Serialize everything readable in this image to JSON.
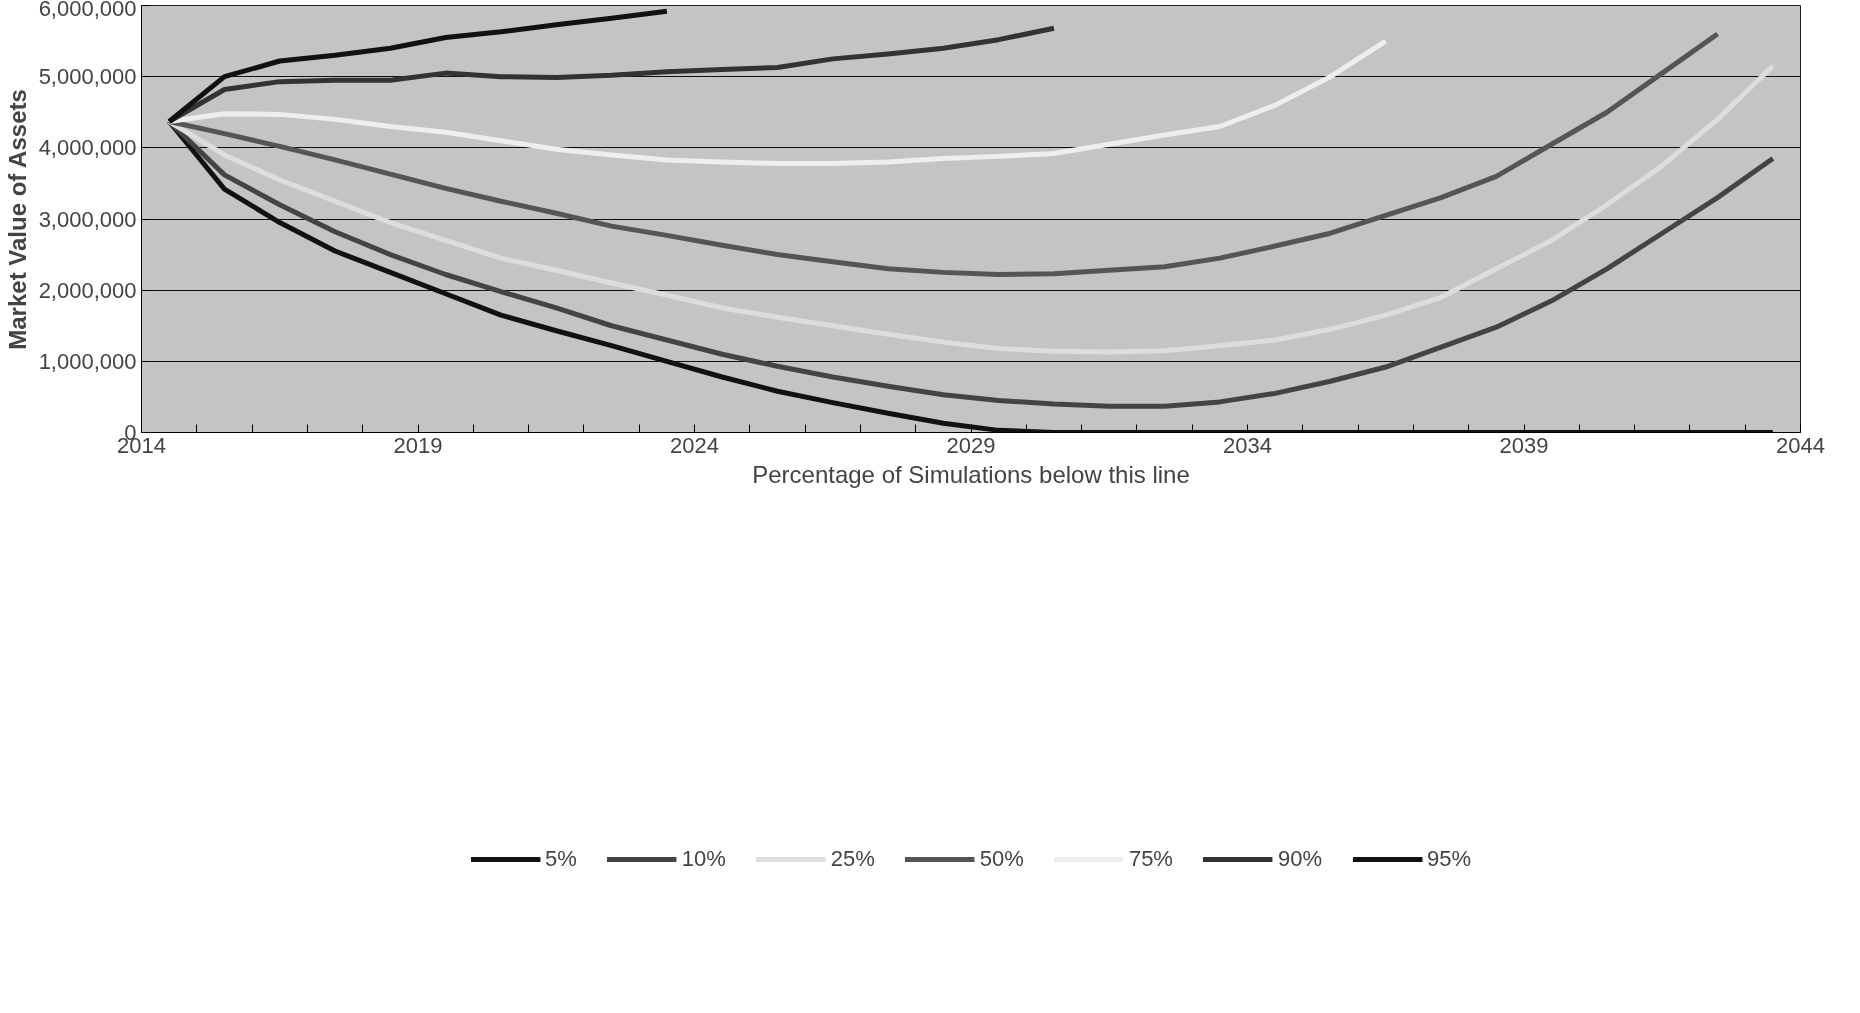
{
  "chart_data": {
    "type": "line",
    "xlabel": "Percentage of Simulations below this line",
    "ylabel": "Market Value of Assets",
    "x": [
      2014.5,
      2015.5,
      2016.5,
      2017.5,
      2018.5,
      2019.5,
      2020.5,
      2021.5,
      2022.5,
      2023.5,
      2024.5,
      2025.5,
      2026.5,
      2027.5,
      2028.5,
      2029.5,
      2030.5,
      2031.5,
      2032.5,
      2033.5,
      2034.5,
      2035.5,
      2036.5,
      2037.5,
      2038.5,
      2039.5,
      2040.5,
      2041.5,
      2042.5,
      2043.5
    ],
    "series": [
      {
        "name": "5%",
        "color": "#111111",
        "values": [
          4370000,
          3420000,
          2950000,
          2550000,
          2250000,
          1950000,
          1650000,
          1430000,
          1220000,
          1000000,
          780000,
          580000,
          420000,
          270000,
          130000,
          30000,
          0,
          0,
          0,
          0,
          0,
          0,
          0,
          0,
          0,
          0,
          0,
          0,
          0,
          0
        ]
      },
      {
        "name": "10%",
        "color": "#444444",
        "values": [
          4370000,
          3620000,
          3200000,
          2820000,
          2500000,
          2220000,
          1980000,
          1750000,
          1500000,
          1300000,
          1100000,
          930000,
          780000,
          650000,
          530000,
          450000,
          400000,
          370000,
          370000,
          430000,
          550000,
          720000,
          920000,
          1200000,
          1480000,
          1850000,
          2300000,
          2800000,
          3300000,
          3850000
        ]
      },
      {
        "name": "25%",
        "color": "#dddddd",
        "values": [
          4370000,
          3900000,
          3550000,
          3250000,
          2950000,
          2700000,
          2450000,
          2280000,
          2100000,
          1930000,
          1750000,
          1620000,
          1500000,
          1380000,
          1270000,
          1180000,
          1140000,
          1130000,
          1150000,
          1220000,
          1300000,
          1450000,
          1650000,
          1900000,
          2300000,
          2700000,
          3200000,
          3750000,
          4400000,
          5150000
        ]
      },
      {
        "name": "50%",
        "color": "#555555",
        "values": [
          4370000,
          4200000,
          4020000,
          3830000,
          3630000,
          3430000,
          3250000,
          3080000,
          2900000,
          2770000,
          2630000,
          2500000,
          2400000,
          2300000,
          2250000,
          2220000,
          2230000,
          2280000,
          2330000,
          2450000,
          2620000,
          2800000,
          3050000,
          3300000,
          3600000,
          4050000,
          4500000,
          5050000,
          5600000,
          null
        ]
      },
      {
        "name": "75%",
        "color": "#eeeeee",
        "values": [
          4370000,
          4480000,
          4470000,
          4400000,
          4300000,
          4220000,
          4100000,
          3980000,
          3900000,
          3830000,
          3800000,
          3780000,
          3780000,
          3800000,
          3850000,
          3880000,
          3920000,
          4050000,
          4180000,
          4300000,
          4600000,
          5000000,
          5500000,
          null,
          null,
          null,
          null,
          null,
          null,
          null
        ]
      },
      {
        "name": "90%",
        "color": "#333333",
        "values": [
          4370000,
          4820000,
          4930000,
          4950000,
          4950000,
          5050000,
          5000000,
          4990000,
          5020000,
          5070000,
          5100000,
          5130000,
          5250000,
          5320000,
          5400000,
          5520000,
          5680000,
          null,
          null,
          null,
          null,
          null,
          null,
          null,
          null,
          null,
          null,
          null,
          null,
          null
        ]
      },
      {
        "name": "95%",
        "color": "#111111",
        "values": [
          4370000,
          5000000,
          5220000,
          5300000,
          5400000,
          5550000,
          5630000,
          5730000,
          5820000,
          5920000,
          null,
          null,
          null,
          null,
          null,
          null,
          null,
          null,
          null,
          null,
          null,
          null,
          null,
          null,
          null,
          null,
          null,
          null,
          null,
          null
        ]
      }
    ],
    "xlim": [
      2014,
      2044
    ],
    "xticks": [
      2014,
      {
        "value": 2015,
        "label": null
      },
      {
        "value": 2016,
        "label": null
      },
      {
        "value": 2017,
        "label": null
      },
      {
        "value": 2018,
        "label": null
      },
      2019,
      {
        "value": 2020,
        "label": null
      },
      {
        "value": 2021,
        "label": null
      },
      {
        "value": 2022,
        "label": null
      },
      {
        "value": 2023,
        "label": null
      },
      2024,
      {
        "value": 2025,
        "label": null
      },
      {
        "value": 2026,
        "label": null
      },
      {
        "value": 2027,
        "label": null
      },
      {
        "value": 2028,
        "label": null
      },
      2029,
      {
        "value": 2030,
        "label": null
      },
      {
        "value": 2031,
        "label": null
      },
      {
        "value": 2032,
        "label": null
      },
      {
        "value": 2033,
        "label": null
      },
      2034,
      {
        "value": 2035,
        "label": null
      },
      {
        "value": 2036,
        "label": null
      },
      {
        "value": 2037,
        "label": null
      },
      {
        "value": 2038,
        "label": null
      },
      2039,
      {
        "value": 2040,
        "label": null
      },
      {
        "value": 2041,
        "label": null
      },
      {
        "value": 2042,
        "label": null
      },
      {
        "value": 2043,
        "label": null
      },
      2044
    ],
    "ylim": [
      0,
      6000000
    ],
    "yticks": [
      {
        "value": 0,
        "label": "0"
      },
      {
        "value": 1000000,
        "label": "1,000,000"
      },
      {
        "value": 2000000,
        "label": "2,000,000"
      },
      {
        "value": 3000000,
        "label": "3,000,000"
      },
      {
        "value": 4000000,
        "label": "4,000,000"
      },
      {
        "value": 5000000,
        "label": "5,000,000"
      },
      {
        "value": 6000000,
        "label": "6,000,000"
      }
    ],
    "grid": "y",
    "legend": "bottom",
    "line_style": "solid",
    "marker": "none"
  }
}
